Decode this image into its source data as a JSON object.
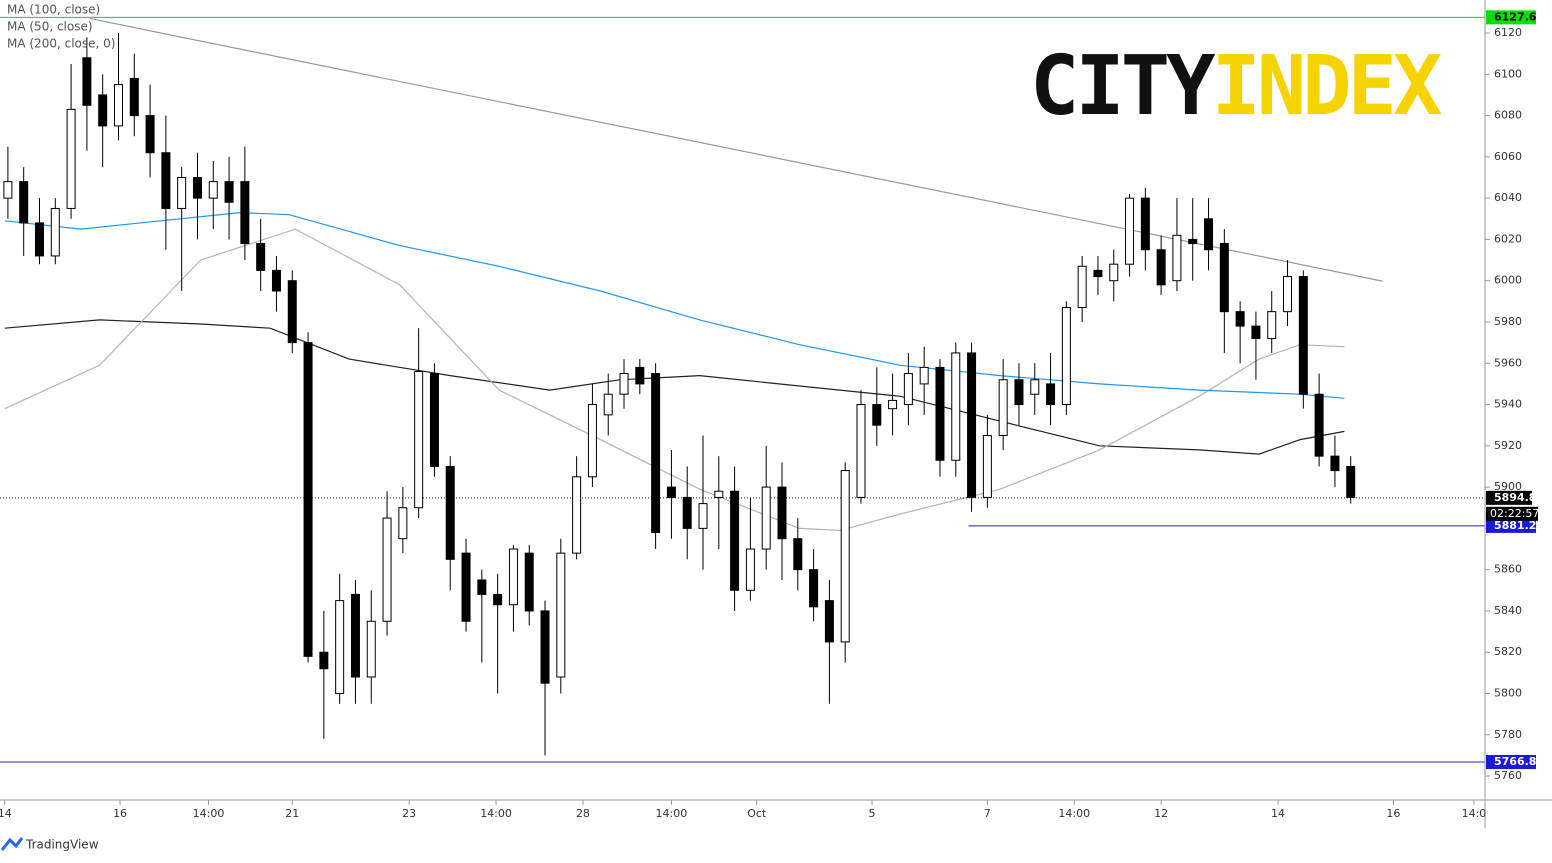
{
  "chart_data": {
    "type": "candlestick",
    "open": [
      6040,
      6048,
      6028,
      6012,
      6035,
      6108,
      6090,
      6075,
      6098,
      6080,
      6062,
      6035,
      6050,
      6040,
      6048,
      6048,
      6018,
      6005,
      6000,
      5970,
      5820,
      5800,
      5848,
      5808,
      5835,
      5875,
      5890,
      5955,
      5910,
      5868,
      5855,
      5848,
      5843,
      5868,
      5840,
      5808,
      5868,
      5905,
      5935,
      5945,
      5958,
      5955,
      5900,
      5895,
      5880,
      5895,
      5898,
      5850,
      5870,
      5900,
      5875,
      5860,
      5845,
      5825,
      5895,
      5940,
      5938,
      5940,
      5950,
      5958,
      5913,
      5965,
      5895,
      5925,
      5952,
      5945,
      5950,
      5940,
      5987,
      6005,
      6000,
      6008,
      6040,
      6015,
      6000,
      6020,
      6030,
      6018,
      5985,
      5978,
      5972,
      5985,
      6002,
      5945,
      5915,
      5910
    ],
    "high": [
      6065,
      6055,
      6040,
      6040,
      6105,
      6118,
      6100,
      6120,
      6110,
      6095,
      6080,
      6055,
      6062,
      6058,
      6060,
      6065,
      6030,
      6012,
      6005,
      5975,
      5840,
      5858,
      5855,
      5850,
      5898,
      5900,
      5977,
      5960,
      5915,
      5875,
      5860,
      5858,
      5872,
      5872,
      5845,
      5875,
      5915,
      5950,
      5955,
      5962,
      5962,
      5960,
      5918,
      5910,
      5925,
      5915,
      5910,
      5895,
      5920,
      5912,
      5885,
      5870,
      5855,
      5912,
      5947,
      5958,
      5955,
      5965,
      5968,
      5962,
      5970,
      5970,
      5935,
      5962,
      5960,
      5960,
      5965,
      5990,
      6012,
      6012,
      6015,
      6042,
      6045,
      6022,
      6040,
      6040,
      6040,
      6025,
      5990,
      5985,
      5995,
      6010,
      6005,
      5955,
      5925,
      5915
    ],
    "low": [
      6030,
      6012,
      6008,
      6008,
      6030,
      6063,
      6055,
      6068,
      6070,
      6050,
      6015,
      5995,
      6020,
      6025,
      6020,
      6010,
      5995,
      5985,
      5965,
      5815,
      5778,
      5795,
      5795,
      5795,
      5828,
      5868,
      5885,
      5905,
      5850,
      5830,
      5815,
      5800,
      5830,
      5833,
      5770,
      5800,
      5865,
      5900,
      5925,
      5938,
      5945,
      5870,
      5875,
      5865,
      5860,
      5870,
      5840,
      5845,
      5860,
      5855,
      5850,
      5835,
      5795,
      5815,
      5892,
      5920,
      5925,
      5930,
      5935,
      5905,
      5905,
      5888,
      5890,
      5918,
      5930,
      5935,
      5930,
      5935,
      5980,
      5993,
      5990,
      6002,
      6005,
      5993,
      5995,
      6000,
      6005,
      5965,
      5960,
      5952,
      5965,
      5978,
      5938,
      5910,
      5900,
      5892
    ],
    "close": [
      6048,
      6028,
      6012,
      6035,
      6083,
      6085,
      6075,
      6095,
      6080,
      6062,
      6035,
      6050,
      6040,
      6048,
      6038,
      6018,
      6005,
      5995,
      5970,
      5818,
      5812,
      5845,
      5808,
      5835,
      5885,
      5890,
      5956,
      5910,
      5865,
      5835,
      5848,
      5843,
      5870,
      5840,
      5805,
      5868,
      5905,
      5940,
      5945,
      5955,
      5950,
      5878,
      5895,
      5880,
      5892,
      5898,
      5850,
      5870,
      5900,
      5875,
      5860,
      5842,
      5825,
      5908,
      5940,
      5930,
      5942,
      5955,
      5958,
      5913,
      5965,
      5895,
      5925,
      5952,
      5940,
      5952,
      5940,
      5987,
      6007,
      6002,
      6008,
      6040,
      6015,
      5998,
      6022,
      6018,
      6015,
      5985,
      5978,
      5972,
      5985,
      6002,
      5945,
      5915,
      5908,
      5895
    ],
    "up_color": "#ffffff",
    "down_color": "#000000",
    "series": [
      {
        "name": "MA (100, close)",
        "color": "#222222",
        "x": [
          -0.2,
          5.8,
          12.2,
          16.6,
          21.6,
          28.0,
          34.3,
          38.7,
          43.8,
          50.1,
          56.5,
          62.8,
          69.1,
          75.4,
          79.2,
          81.8,
          84.6
        ],
        "values": [
          5977,
          5981,
          5979,
          5977,
          5962,
          5954,
          5947,
          5952,
          5954,
          5949,
          5944,
          5932,
          5920,
          5918,
          5916,
          5923,
          5927
        ]
      },
      {
        "name": "MA (50, close)",
        "color": "#b4b4b4",
        "x": [
          -0.2,
          5.8,
          12.2,
          18.2,
          24.8,
          31.1,
          37.5,
          43.8,
          50.1,
          52.7,
          56.5,
          62.8,
          69.1,
          75.4,
          79.2,
          81.8,
          84.6
        ],
        "values": [
          5938,
          5959,
          6010,
          6025,
          5998,
          5947,
          5923,
          5899,
          5880,
          5879,
          5887,
          5899,
          5918,
          5944,
          5962,
          5969,
          5968
        ]
      },
      {
        "name": "MA (200, close, 0)",
        "color": "#2196f3",
        "x": [
          -0.2,
          4.6,
          14.7,
          17.8,
          24.8,
          31.1,
          37.5,
          43.8,
          50.1,
          56.5,
          62.8,
          69.1,
          75.4,
          81.8,
          84.6
        ],
        "values": [
          6029,
          6025,
          6033,
          6032,
          6017,
          6007,
          5995,
          5981,
          5969,
          5959,
          5954,
          5950,
          5947,
          5945,
          5943
        ]
      }
    ],
    "trendline": {
      "x": [
        5.2,
        87.0
      ],
      "values": [
        6127,
        5999.8
      ],
      "color": "#999999"
    },
    "levels": [
      {
        "value": 6127.6,
        "color": "#00e000",
        "x_start": -0.5
      },
      {
        "value": 5881.2,
        "color": "#1a1ad6",
        "x_start": 60.8
      },
      {
        "value": 5766.8,
        "color": "#1a1ad6",
        "x_start": -0.5
      }
    ],
    "last_price": {
      "value": 5894.8,
      "countdown": "02:22:57"
    },
    "xlim": [
      -0.5,
      93.5
    ],
    "ylim": [
      5748.4,
      6136
    ],
    "yticks": [
      5760,
      5780,
      5800,
      5820,
      5840,
      5860,
      5880,
      5900,
      5920,
      5940,
      5960,
      5980,
      6000,
      6020,
      6040,
      6060,
      6080,
      6100,
      6120
    ],
    "xticks": [
      {
        "value": -0.2,
        "label": "14"
      },
      {
        "value": 7.1,
        "label": "16"
      },
      {
        "value": 12.7,
        "label": "14:00"
      },
      {
        "value": 18.0,
        "label": "21"
      },
      {
        "value": 25.4,
        "label": "23"
      },
      {
        "value": 30.9,
        "label": "14:00"
      },
      {
        "value": 36.4,
        "label": "28"
      },
      {
        "value": 42.0,
        "label": "14:00"
      },
      {
        "value": 47.4,
        "label": "Oct"
      },
      {
        "value": 54.7,
        "label": "5"
      },
      {
        "value": 62.0,
        "label": "7"
      },
      {
        "value": 67.5,
        "label": "14:00"
      },
      {
        "value": 73.0,
        "label": "12"
      },
      {
        "value": 80.4,
        "label": "14"
      },
      {
        "value": 87.7,
        "label": "16"
      },
      {
        "value": 92.8,
        "label": "14:0"
      }
    ],
    "logo": [
      "CITY",
      "INDEX"
    ],
    "source": "TradingView"
  }
}
